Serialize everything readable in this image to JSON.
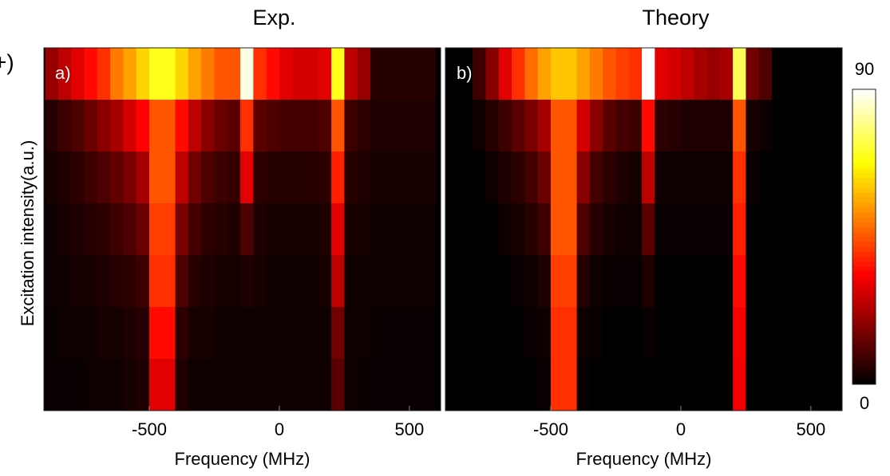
{
  "chart_data": [
    {
      "type": "heatmap",
      "title": "Exp.",
      "panel_label": "a)",
      "side_label": "+)",
      "xlabel": "Frequency (MHz)",
      "ylabel": "Excitation intensity(a.u.)",
      "colormap": "hot",
      "zlim": [
        0,
        90
      ],
      "xlim": [
        -905,
        620
      ],
      "xticks": [
        -500,
        0,
        500
      ],
      "bins": [
        -900,
        -850,
        -800,
        -750,
        -700,
        -650,
        -600,
        -550,
        -500,
        -450,
        -400,
        -350,
        -300,
        -250,
        -200,
        -150,
        -100,
        -50,
        0,
        50,
        100,
        150,
        200,
        250,
        300,
        350,
        400,
        450,
        500,
        550,
        600
      ],
      "values": [
        [
          20,
          25,
          30,
          35,
          40,
          50,
          55,
          62,
          70,
          70,
          62,
          55,
          50,
          45,
          45,
          88,
          40,
          35,
          30,
          28,
          28,
          30,
          70,
          25,
          20,
          5,
          5,
          5,
          5,
          5
        ],
        [
          5,
          8,
          10,
          14,
          18,
          22,
          28,
          34,
          45,
          45,
          35,
          25,
          18,
          14,
          12,
          40,
          12,
          10,
          9,
          9,
          9,
          10,
          45,
          8,
          6,
          4,
          4,
          4,
          4,
          4
        ],
        [
          3,
          4,
          6,
          8,
          10,
          13,
          16,
          22,
          45,
          45,
          25,
          15,
          10,
          8,
          7,
          30,
          6,
          5,
          5,
          5,
          5,
          6,
          38,
          5,
          4,
          3,
          3,
          3,
          3,
          3
        ],
        [
          2,
          3,
          4,
          5,
          6,
          8,
          10,
          14,
          42,
          42,
          16,
          9,
          6,
          5,
          4,
          10,
          4,
          3,
          3,
          3,
          3,
          4,
          30,
          3,
          3,
          2,
          2,
          2,
          2,
          2
        ],
        [
          2,
          2,
          3,
          3,
          4,
          5,
          6,
          8,
          40,
          40,
          10,
          5,
          4,
          3,
          3,
          4,
          3,
          2,
          2,
          2,
          2,
          3,
          25,
          2,
          2,
          2,
          2,
          2,
          2,
          2
        ],
        [
          1,
          2,
          2,
          2,
          3,
          3,
          4,
          5,
          35,
          35,
          6,
          3,
          3,
          2,
          2,
          2,
          2,
          2,
          2,
          2,
          2,
          2,
          15,
          2,
          2,
          1,
          1,
          1,
          1,
          1
        ],
        [
          1,
          1,
          1,
          2,
          2,
          2,
          3,
          4,
          30,
          30,
          4,
          2,
          2,
          2,
          2,
          2,
          2,
          2,
          2,
          2,
          2,
          2,
          12,
          2,
          1,
          1,
          1,
          1,
          1,
          1
        ]
      ]
    },
    {
      "type": "heatmap",
      "title": "Theory",
      "panel_label": "b)",
      "xlabel": "Frequency (MHz)",
      "colormap": "hot",
      "zlim": [
        0,
        90
      ],
      "xlim": [
        -905,
        620
      ],
      "xticks": [
        -500,
        0,
        500
      ],
      "colorbar": {
        "ylim": [
          0,
          90
        ],
        "yticks": [
          0,
          90
        ]
      },
      "bins": [
        -900,
        -850,
        -800,
        -750,
        -700,
        -650,
        -600,
        -550,
        -500,
        -450,
        -400,
        -350,
        -300,
        -250,
        -200,
        -150,
        -100,
        -50,
        0,
        50,
        100,
        150,
        200,
        250,
        300,
        350,
        400,
        450,
        500,
        550,
        600
      ],
      "values": [
        [
          0,
          0,
          8,
          18,
          30,
          40,
          48,
          55,
          60,
          60,
          55,
          50,
          45,
          42,
          40,
          90,
          30,
          28,
          25,
          22,
          20,
          22,
          75,
          15,
          10,
          0,
          0,
          0,
          0,
          0
        ],
        [
          0,
          0,
          2,
          5,
          8,
          12,
          16,
          22,
          45,
          45,
          28,
          18,
          12,
          9,
          8,
          35,
          6,
          5,
          4,
          4,
          4,
          4,
          45,
          3,
          2,
          0,
          0,
          0,
          0,
          0
        ],
        [
          0,
          0,
          0,
          2,
          4,
          6,
          9,
          14,
          45,
          45,
          18,
          9,
          6,
          4,
          3,
          25,
          2,
          2,
          2,
          2,
          2,
          2,
          40,
          1,
          0,
          0,
          0,
          0,
          0,
          0
        ],
        [
          0,
          0,
          0,
          0,
          2,
          3,
          5,
          8,
          45,
          45,
          10,
          5,
          3,
          2,
          2,
          12,
          1,
          1,
          1,
          1,
          1,
          1,
          38,
          0,
          0,
          0,
          0,
          0,
          0,
          0
        ],
        [
          0,
          0,
          0,
          0,
          0,
          1,
          2,
          4,
          42,
          42,
          5,
          2,
          1,
          1,
          1,
          4,
          0,
          0,
          0,
          0,
          0,
          0,
          35,
          0,
          0,
          0,
          0,
          0,
          0,
          0
        ],
        [
          0,
          0,
          0,
          0,
          0,
          0,
          1,
          2,
          40,
          40,
          2,
          1,
          0,
          0,
          0,
          1,
          0,
          0,
          0,
          0,
          0,
          0,
          33,
          0,
          0,
          0,
          0,
          0,
          0,
          0
        ],
        [
          0,
          0,
          0,
          0,
          0,
          0,
          0,
          1,
          40,
          40,
          1,
          0,
          0,
          0,
          0,
          0,
          0,
          0,
          0,
          0,
          0,
          0,
          32,
          0,
          0,
          0,
          0,
          0,
          0,
          0
        ]
      ]
    }
  ]
}
